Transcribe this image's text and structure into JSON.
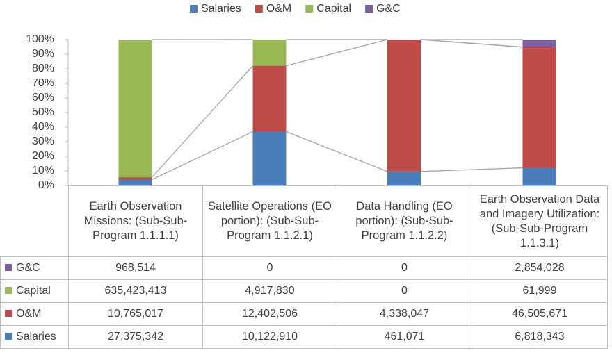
{
  "chart_data": {
    "type": "stacked_bar_100",
    "categories": [
      "Earth Observation Missions: (Sub-Sub-Program 1.1.1.1)",
      "Satellite Operations (EO portion): (Sub-Sub-Program 1.1.2.1)",
      "Data Handling (EO portion): (Sub-Sub-Program 1.1.2.2)",
      "Earth Observation Data and Imagery Utilization: (Sub-Sub-Program 1.1.3.1)"
    ],
    "series": [
      {
        "name": "Salaries",
        "color": "#4a7ebb",
        "values": [
          27375342,
          10122910,
          461071,
          6818343
        ],
        "value_labels": [
          "27,375,342",
          "10,122,910",
          "461,071",
          "6,818,343"
        ]
      },
      {
        "name": "O&M",
        "color": "#be4b48",
        "values": [
          10765017,
          12402506,
          4338047,
          46505671
        ],
        "value_labels": [
          "10,765,017",
          "12,402,506",
          "4,338,047",
          "46,505,671"
        ]
      },
      {
        "name": "Capital",
        "color": "#98b954",
        "values": [
          635423413,
          4917830,
          0,
          61999
        ],
        "value_labels": [
          "635,423,413",
          "4,917,830",
          "0",
          "61,999"
        ]
      },
      {
        "name": "G&C",
        "color": "#7d5fa0",
        "values": [
          968514,
          0,
          0,
          2854028
        ],
        "value_labels": [
          "968,514",
          "0",
          "0",
          "2,854,028"
        ]
      }
    ],
    "ylim": [
      0,
      100
    ],
    "yticks": [
      {
        "value": 0,
        "label": "0%"
      },
      {
        "value": 10,
        "label": "10%"
      },
      {
        "value": 20,
        "label": "20%"
      },
      {
        "value": 30,
        "label": "30%"
      },
      {
        "value": 40,
        "label": "40%"
      },
      {
        "value": 50,
        "label": "50%"
      },
      {
        "value": 60,
        "label": "60%"
      },
      {
        "value": 70,
        "label": "70%"
      },
      {
        "value": 80,
        "label": "80%"
      },
      {
        "value": 90,
        "label": "90%"
      },
      {
        "value": 100,
        "label": "100%"
      }
    ],
    "series_lines": true,
    "legend": "top"
  }
}
